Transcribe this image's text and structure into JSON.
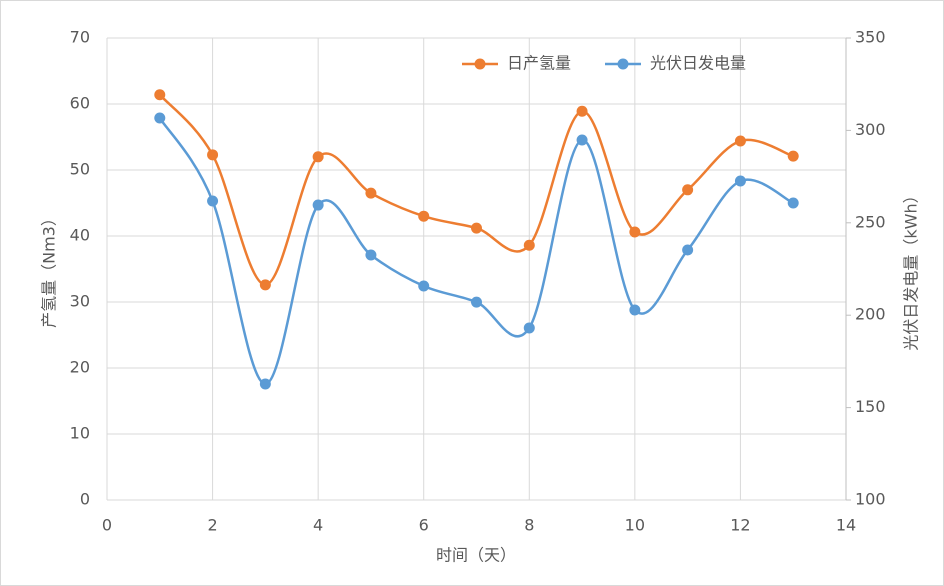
{
  "chart_data": {
    "type": "line",
    "xlabel": "时间（天）",
    "ylabel": "产氢量（Nm3）",
    "y2label": "光伏日发电量（kWh）",
    "x": [
      1,
      2,
      3,
      4,
      5,
      6,
      7,
      8,
      9,
      10,
      11,
      12,
      13
    ],
    "xlim": [
      0,
      14
    ],
    "xticks": [
      0,
      2,
      4,
      6,
      8,
      10,
      12,
      14
    ],
    "ylim": [
      0,
      70
    ],
    "yticks": [
      0,
      10,
      20,
      30,
      40,
      50,
      60,
      70
    ],
    "y2lim": [
      100,
      350
    ],
    "y2ticks": [
      100,
      150,
      200,
      250,
      300,
      350
    ],
    "grid": true,
    "smooth": true,
    "legend": "top-right",
    "series": [
      {
        "name": "日产氢量",
        "color": "#ed7d31",
        "axis": "y",
        "values": [
          61.4,
          52.3,
          32.6,
          52.0,
          46.5,
          43.0,
          41.2,
          38.6,
          58.9,
          40.6,
          47.0,
          54.4,
          52.1
        ]
      },
      {
        "name": "光伏日发电量",
        "color": "#5b9bd5",
        "axis": "y2",
        "values": [
          306.7,
          261.8,
          162.8,
          259.6,
          232.6,
          215.8,
          207.1,
          193.1,
          294.8,
          202.8,
          235.3,
          272.6,
          260.7
        ]
      }
    ]
  }
}
